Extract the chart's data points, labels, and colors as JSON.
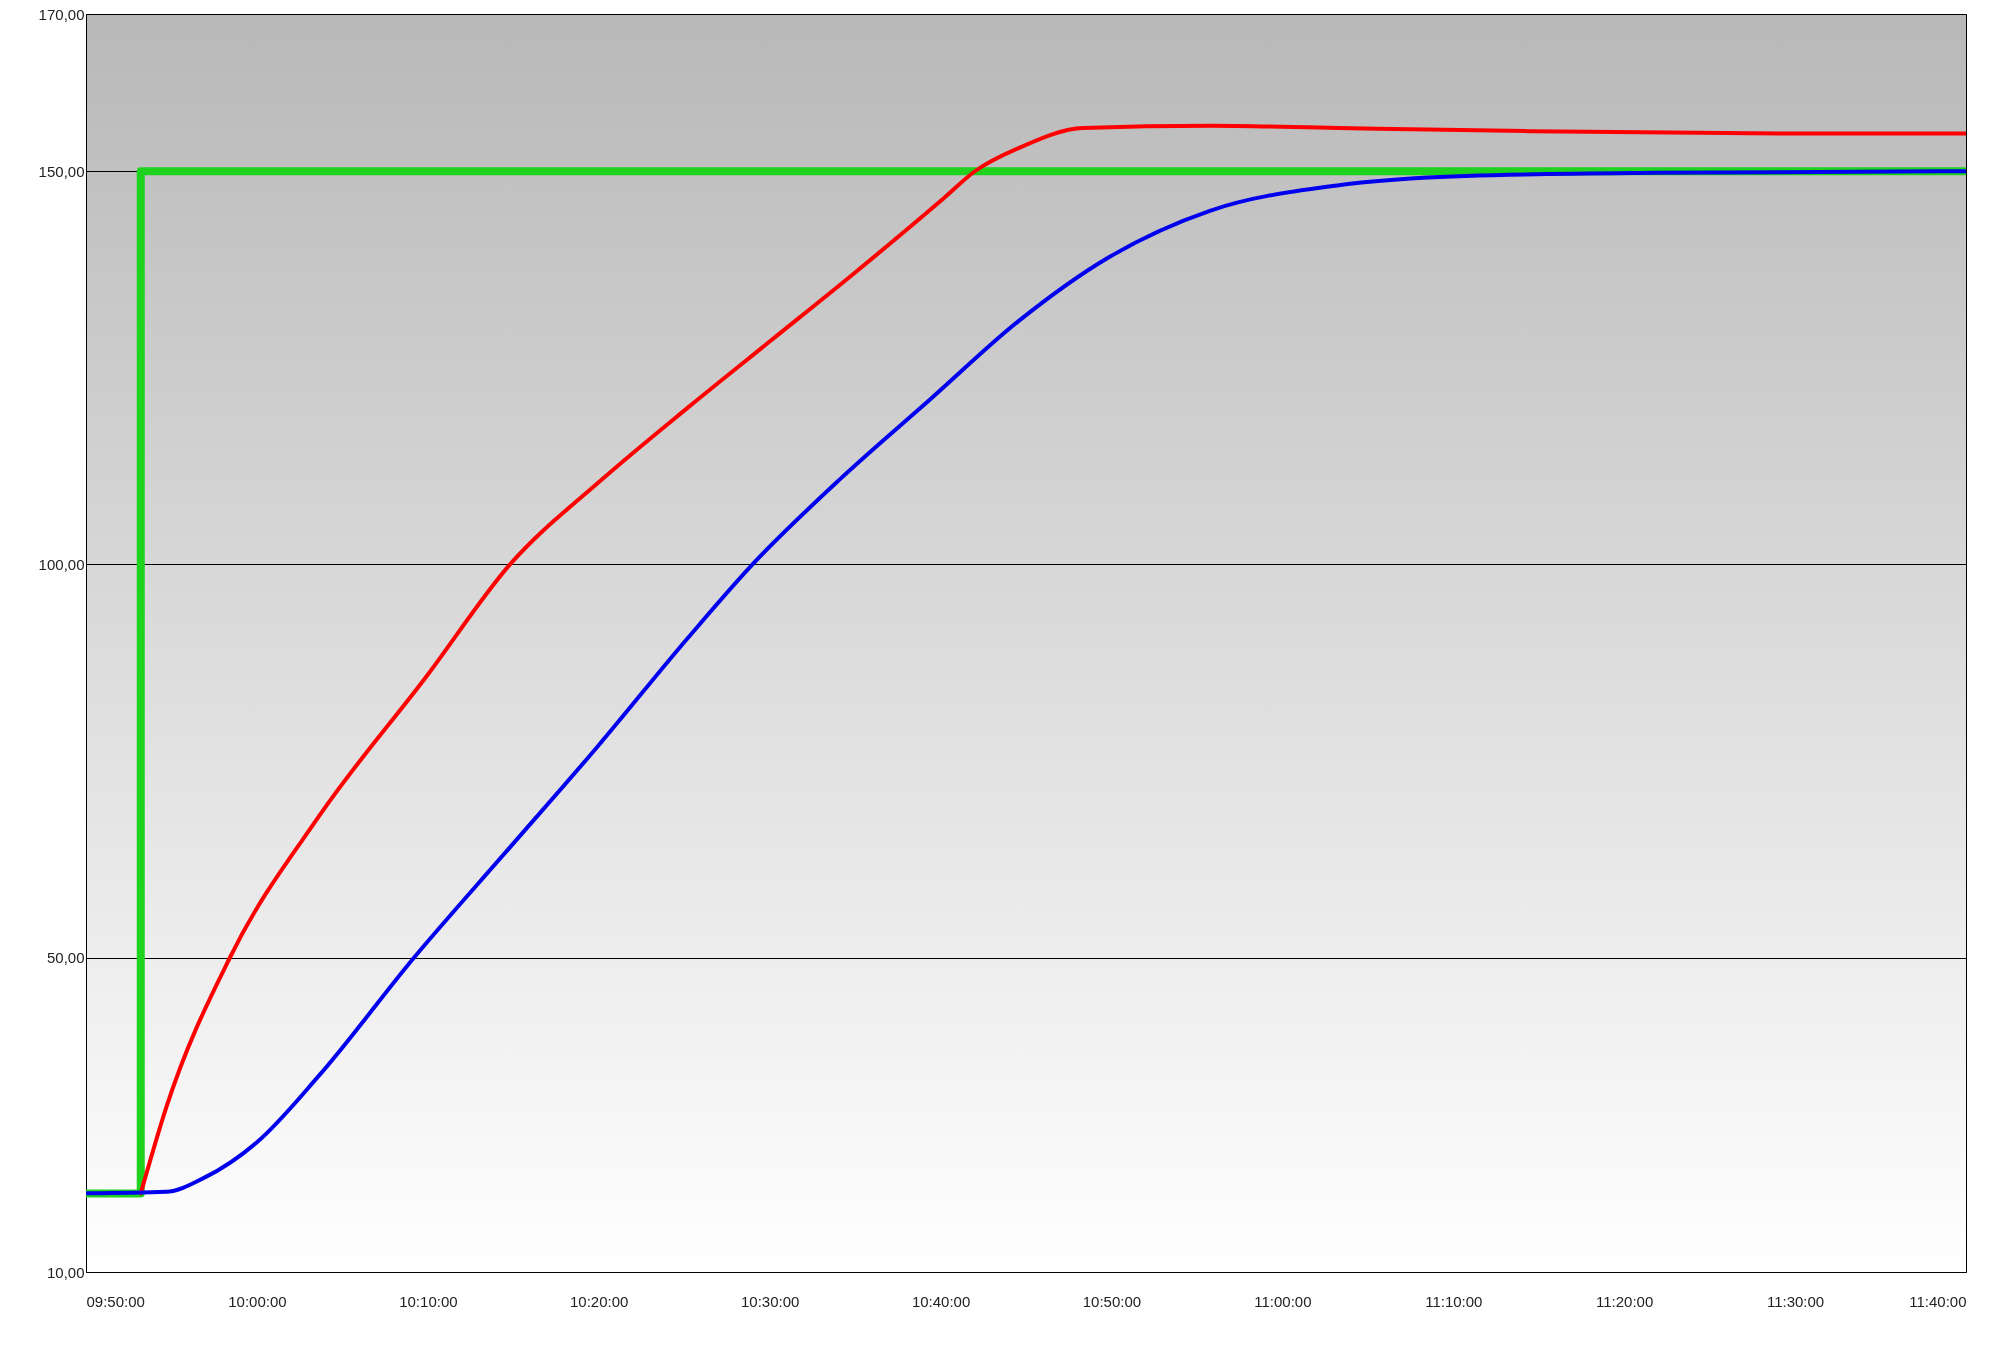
{
  "chart_data": {
    "type": "line",
    "xlim": [
      9.8333,
      11.6667
    ],
    "ylim": [
      10,
      170
    ],
    "xticks": [
      {
        "value": 9.8333,
        "label": "09:50:00"
      },
      {
        "value": 10,
        "label": "10:00:00"
      },
      {
        "value": 10.1667,
        "label": "10:10:00"
      },
      {
        "value": 10.3333,
        "label": "10:20:00"
      },
      {
        "value": 10.5,
        "label": "10:30:00"
      },
      {
        "value": 10.6667,
        "label": "10:40:00"
      },
      {
        "value": 10.8333,
        "label": "10:50:00"
      },
      {
        "value": 11,
        "label": "11:00:00"
      },
      {
        "value": 11.1667,
        "label": "11:10:00"
      },
      {
        "value": 11.3333,
        "label": "11:20:00"
      },
      {
        "value": 11.5,
        "label": "11:30:00"
      },
      {
        "value": 11.6667,
        "label": "11:40:00"
      }
    ],
    "yticks": [
      {
        "value": 10,
        "label": "10,00"
      },
      {
        "value": 50,
        "label": "50,00"
      },
      {
        "value": 100,
        "label": "100,00"
      },
      {
        "value": 150,
        "label": "150,00"
      },
      {
        "value": 170,
        "label": "170,00"
      }
    ],
    "grid": "y",
    "legend": false,
    "marker": "none",
    "line_style": "solid",
    "series": [
      {
        "type": "step",
        "color": "#1ed21e",
        "x": [
          9.8333,
          9.8867,
          11.6667
        ],
        "values": [
          20,
          150,
          150
        ]
      },
      {
        "color": "#ff0000",
        "x": [
          9.8867,
          9.9115,
          9.9737,
          10.0607,
          10.1662,
          10.2468,
          10.3338,
          10.4208,
          10.5015,
          10.5822,
          10.6692,
          10.7002,
          10.7437,
          10.8058,
          10.93,
          11.0542,
          11.2405,
          11.4888,
          11.6667
        ],
        "values": [
          20,
          30.9,
          50,
          68,
          85.9,
          100,
          110.5,
          120,
          128.5,
          137,
          146.5,
          150,
          153,
          155.5,
          155.8,
          155.5,
          155.1,
          154.8,
          154.8
        ]
      },
      {
        "color": "#0000ee",
        "x": [
          9.8333,
          9.9115,
          9.9488,
          10.0,
          10.0607,
          10.1533,
          10.2467,
          10.3333,
          10.42,
          10.4833,
          10.57,
          10.6567,
          10.7433,
          10.83,
          10.93,
          11.0533,
          11.1783,
          11.365,
          11.6667
        ],
        "values": [
          20,
          20.2,
          22,
          26.5,
          35,
          50,
          64,
          77,
          90.6,
          100,
          111,
          121,
          131,
          139,
          145,
          148.2,
          149.4,
          149.8,
          150
        ]
      }
    ]
  }
}
